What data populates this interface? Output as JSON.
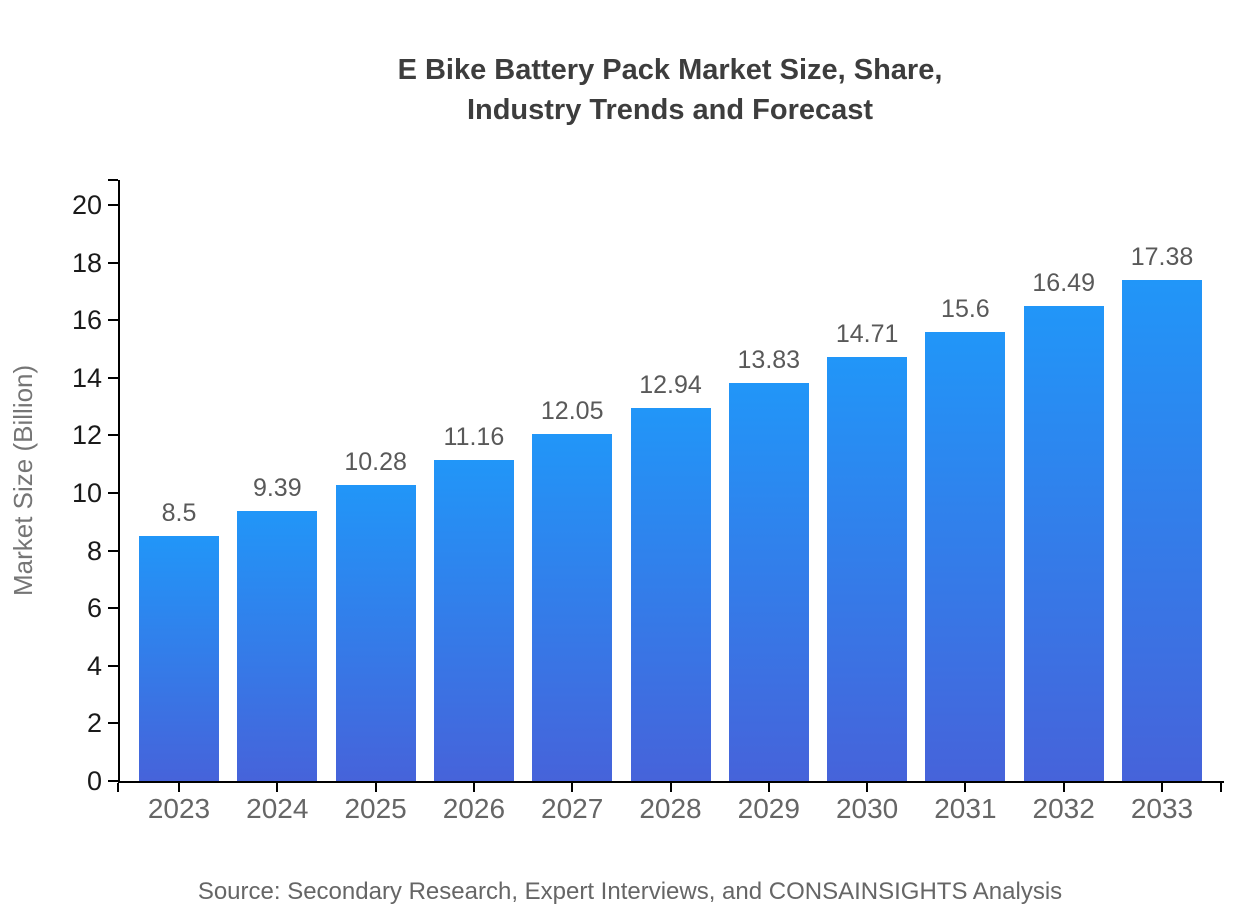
{
  "chart_data": {
    "type": "bar",
    "title": "E Bike Battery Pack Market Size, Share, Industry Trends and Forecast",
    "title_lines": [
      "E Bike Battery Pack Market Size, Share,",
      "Industry Trends and Forecast"
    ],
    "categories": [
      "2023",
      "2024",
      "2025",
      "2026",
      "2027",
      "2028",
      "2029",
      "2030",
      "2031",
      "2032",
      "2033"
    ],
    "values": [
      8.5,
      9.39,
      10.28,
      11.16,
      12.05,
      12.94,
      13.83,
      14.71,
      15.6,
      16.49,
      17.38
    ],
    "value_labels": [
      "8.5",
      "9.39",
      "10.28",
      "11.16",
      "12.05",
      "12.94",
      "13.83",
      "14.71",
      "15.6",
      "16.49",
      "17.38"
    ],
    "xlabel": "",
    "ylabel": "Market Size (Billion)",
    "ylim": [
      0,
      20
    ],
    "ytick_step": 2,
    "grid": false,
    "legend": false,
    "source": "Source: Secondary Research, Expert Interviews, and CONSAINSIGHTS Analysis",
    "colors": {
      "bar_gradient_top": "#2196f8",
      "bar_gradient_bottom": "#4663da",
      "axis": "#000000",
      "title_text": "#3d3d3d",
      "ytick_text": "#1a1a1a",
      "xtick_text": "#666666",
      "value_text": "#595959",
      "ylabel_text": "#757575",
      "source_text": "#666666"
    }
  }
}
